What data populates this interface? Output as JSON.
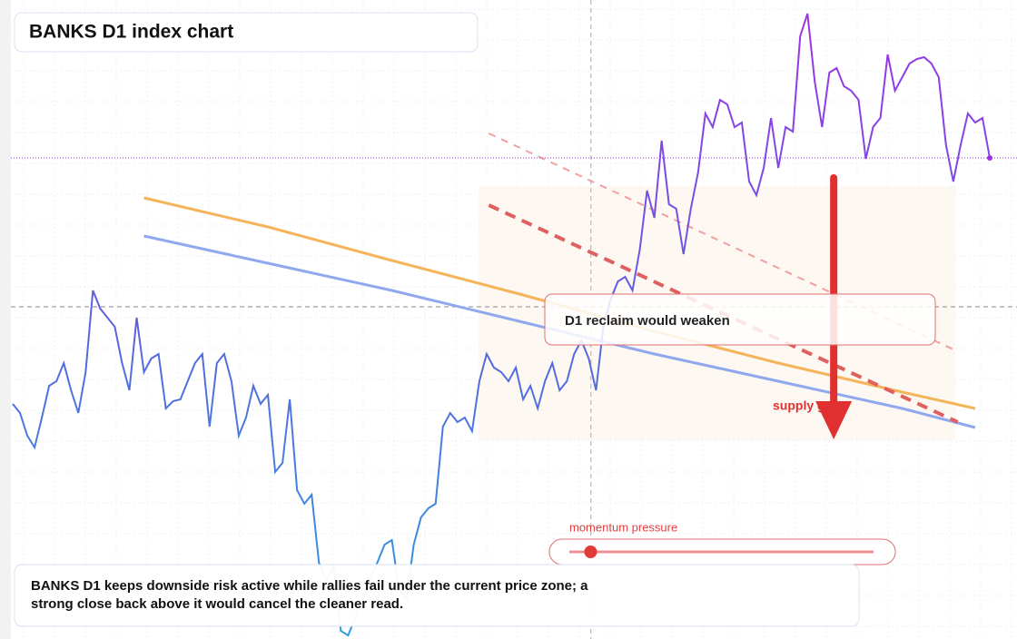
{
  "chart_data": {
    "type": "line",
    "title": "BANKS D1 index chart",
    "ylim": [
      0,
      704
    ],
    "xlim": [
      0,
      134
    ],
    "grid": true,
    "series": [
      {
        "name": "BANKS D1",
        "gradient": [
          "#a22fe8",
          "#5a62e0",
          "#2e9ee0"
        ],
        "values": [
          259,
          249,
          224,
          211,
          244,
          279,
          284,
          304,
          274,
          249,
          294,
          384,
          364,
          354,
          344,
          304,
          274,
          354,
          294,
          309,
          314,
          254,
          262,
          264,
          284,
          304,
          314,
          234,
          304,
          314,
          284,
          224,
          244,
          279,
          259,
          269,
          184,
          194,
          264,
          164,
          149,
          159,
          84,
          64,
          79,
          9,
          4,
          24,
          44,
          64,
          84,
          104,
          109,
          54,
          44,
          104,
          134,
          144,
          149,
          234,
          249,
          239,
          244,
          229,
          284,
          314,
          299,
          294,
          284,
          299,
          264,
          279,
          254,
          284,
          304,
          274,
          284,
          314,
          329,
          309,
          274,
          344,
          374,
          394,
          399,
          384,
          429,
          494,
          464,
          549,
          479,
          474,
          424,
          474,
          514,
          579,
          564,
          594,
          589,
          564,
          569,
          504,
          489,
          519,
          574,
          519,
          564,
          559,
          664,
          689,
          614,
          564,
          624,
          629,
          609,
          604,
          594,
          529,
          564,
          574,
          644,
          604,
          619,
          634,
          639,
          641,
          634,
          619,
          544,
          504,
          544,
          579,
          569,
          574,
          530
        ]
      }
    ],
    "overlays": [
      {
        "name": "ma-fast",
        "color": "#f5b35a",
        "x": [
          18,
          35,
          52,
          70,
          88,
          105,
          122,
          132
        ],
        "values": [
          486,
          454,
          417,
          379,
          339,
          304,
          272,
          254
        ]
      },
      {
        "name": "ma-slow",
        "color": "#8fa8ee",
        "x": [
          18,
          35,
          52,
          70,
          88,
          105,
          122,
          132
        ],
        "values": [
          444,
          414,
          384,
          349,
          314,
          284,
          254,
          233
        ]
      }
    ],
    "trendlines": [
      {
        "style": "strong",
        "color": "#e06060",
        "x": [
          65.3,
          129.6
        ],
        "values": [
          478,
          239
        ]
      },
      {
        "style": "light",
        "color": "#f0a0a0",
        "x": [
          65.3,
          129.3
        ],
        "values": [
          557,
          318
        ]
      }
    ],
    "crosshair": {
      "x": 79.3,
      "y": 366
    },
    "zone": {
      "x": [
        63.9,
        129.3
      ],
      "values": [
        219,
        499
      ],
      "label": "supply gate"
    },
    "arrow": {
      "x": 112.6,
      "values": [
        508,
        220
      ],
      "color": "#e03030"
    },
    "callout": "D1 reclaim would weaken",
    "momentum": {
      "label": "momentum pressure",
      "value": 7,
      "range": [
        0,
        100
      ]
    },
    "note": "BANKS D1 keeps downside risk active while rallies fail under the current price zone; a strong close back above it would cancel the cleaner read."
  }
}
